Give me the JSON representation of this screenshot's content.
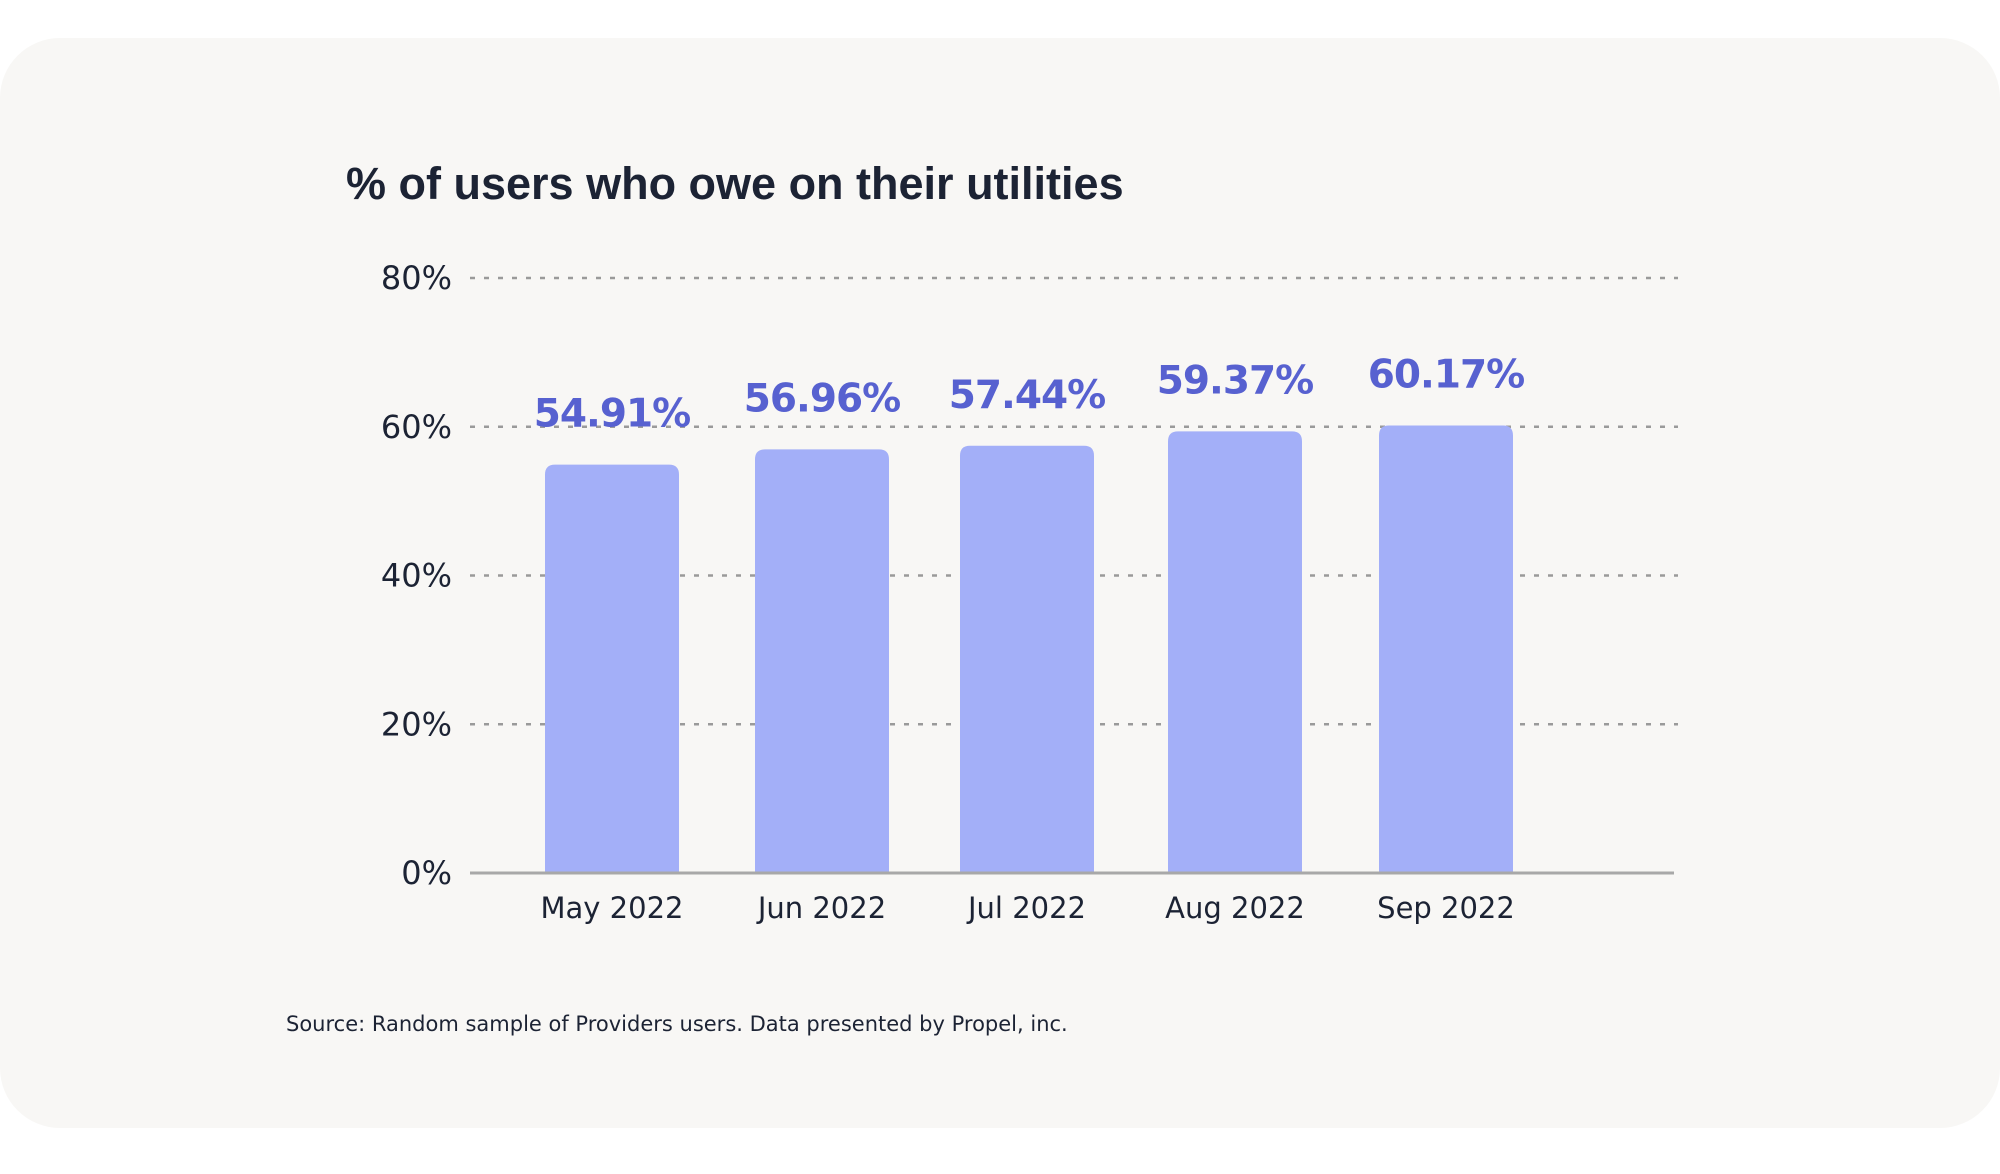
{
  "chart_data": {
    "type": "bar",
    "title": "% of users who owe on their utilities",
    "categories": [
      "May 2022",
      "Jun 2022",
      "Jul 2022",
      "Aug 2022",
      "Sep 2022"
    ],
    "values": [
      54.91,
      56.96,
      57.44,
      59.37,
      60.17
    ],
    "data_labels": [
      "54.91%",
      "56.96%",
      "57.44%",
      "59.37%",
      "60.17%"
    ],
    "ylim": [
      0,
      80
    ],
    "y_ticks": [
      0,
      20,
      40,
      60,
      80
    ],
    "y_tick_labels": [
      "0%",
      "20%",
      "40%",
      "60%",
      "80%"
    ],
    "xlabel": "",
    "ylabel": "",
    "grid": true,
    "source": "Source: Random sample of Providers users. Data presented by Propel, inc."
  },
  "colors": {
    "bar": "#a3aff8",
    "label": "#5761d0",
    "text": "#1c2334",
    "grid": "#9a9a9a",
    "axis": "#a8a8a8",
    "card": "#f8f7f5"
  }
}
